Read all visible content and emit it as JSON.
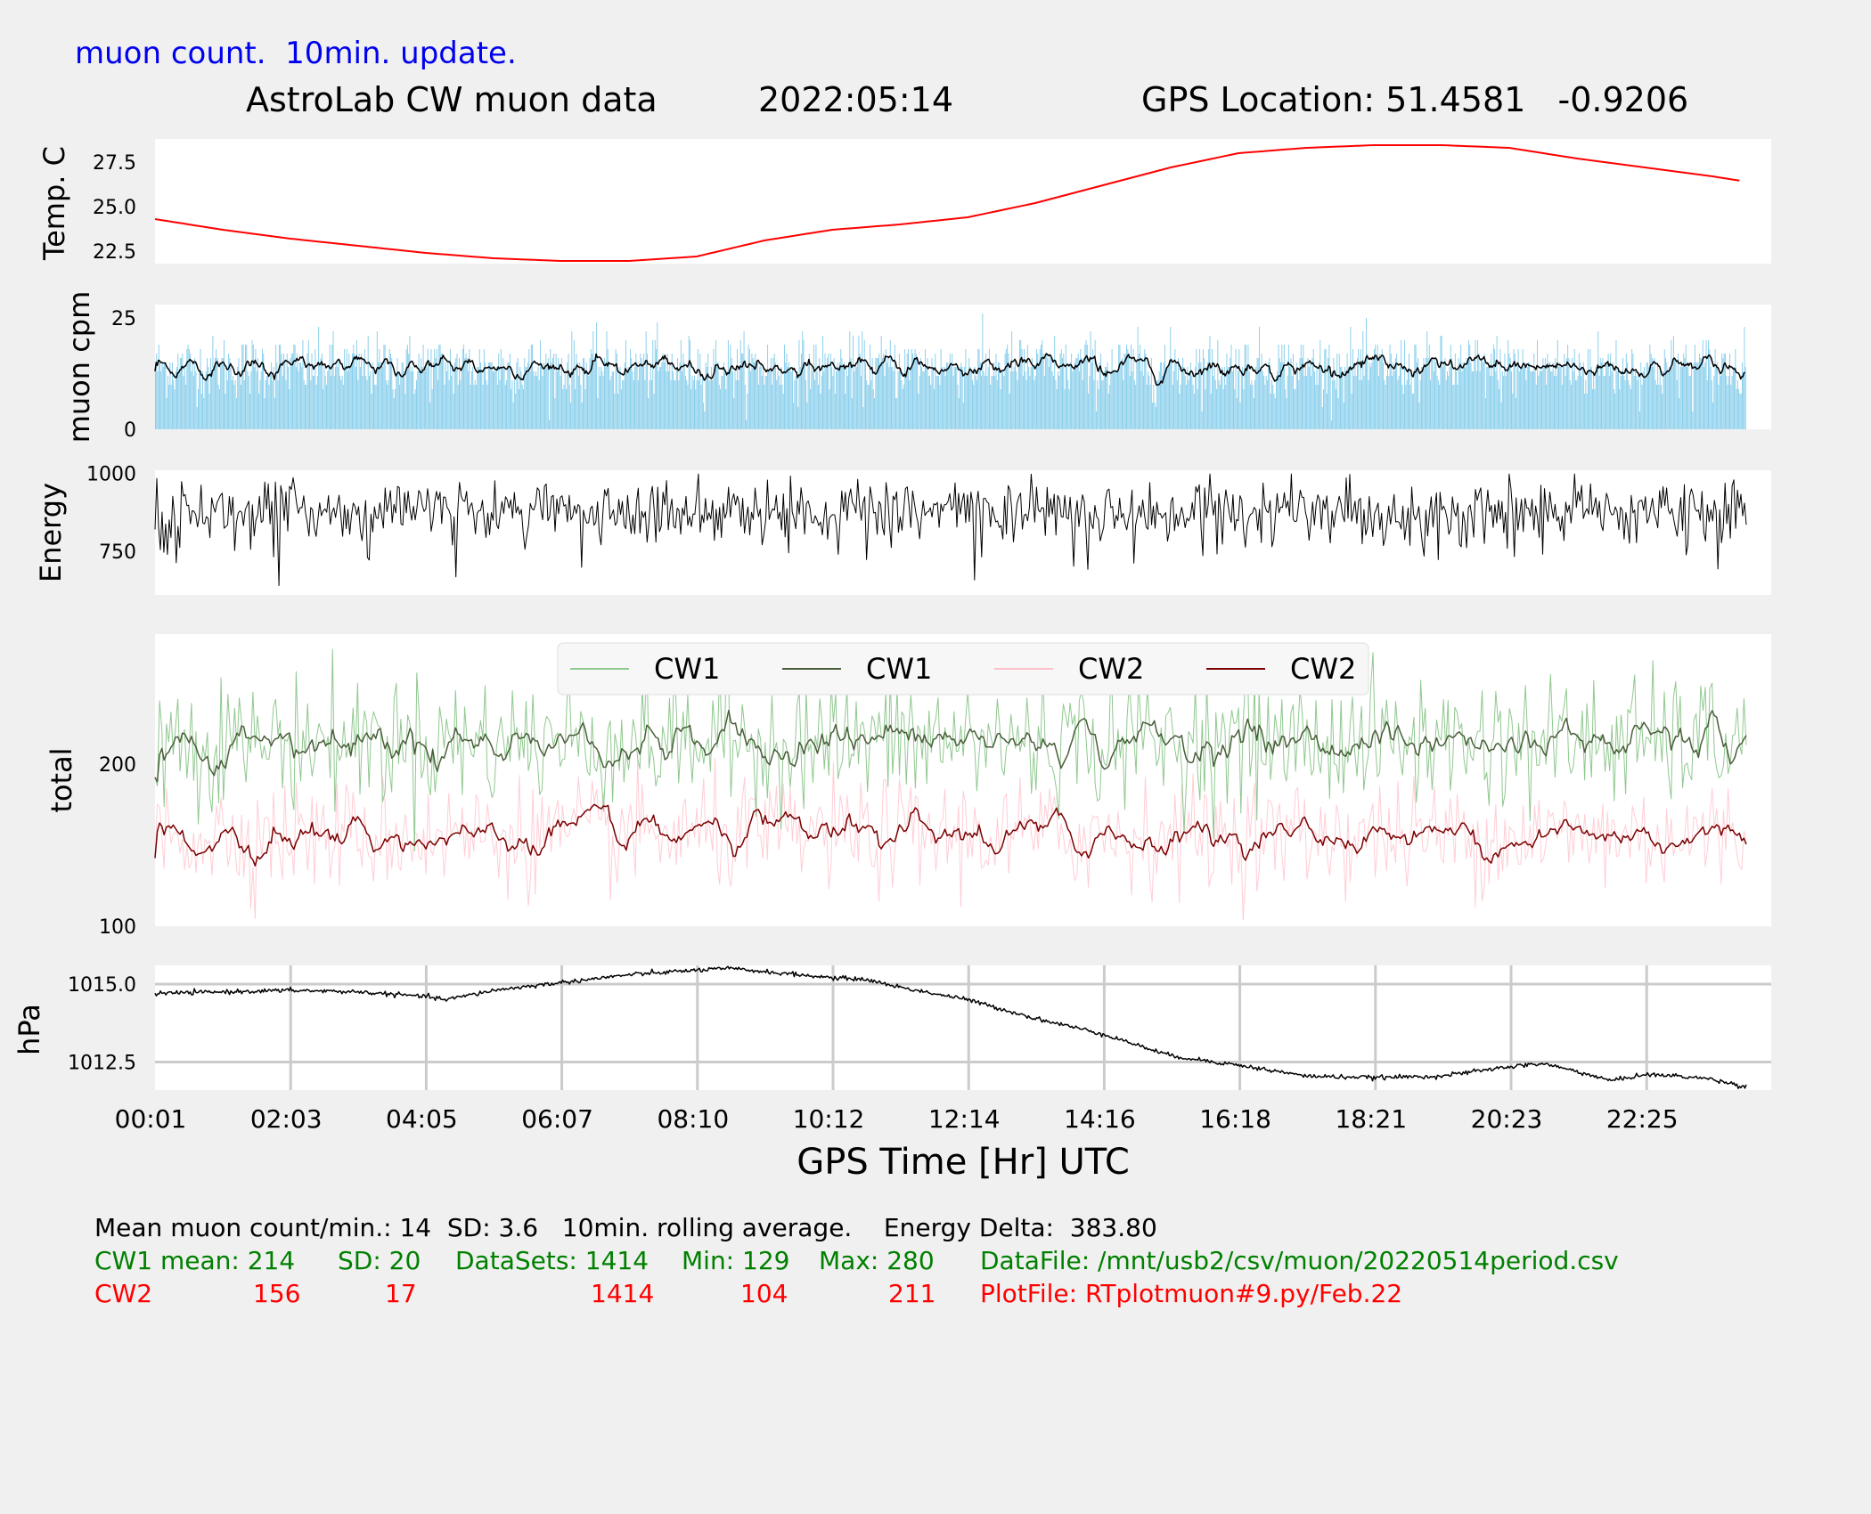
{
  "header": {
    "update_note": "muon count.  10min. update.",
    "title": "AstroLab CW muon data",
    "date": "2022:05:14",
    "gps": "GPS Location: 51.4581   -0.9206"
  },
  "chart_data": [
    {
      "type": "line",
      "id": "temperature",
      "ylabel": "Temp. C",
      "ylim": [
        21.8,
        28.8
      ],
      "yticks": [
        "27.5",
        "25.0",
        "22.5"
      ],
      "series": [
        {
          "color": "#ff0000",
          "x": [
            0.0,
            1.0,
            2.0,
            3.0,
            4.0,
            5.0,
            6.0,
            7.0,
            8.0,
            9.0,
            10.0,
            11.0,
            12.0,
            13.0,
            14.0,
            15.0,
            16.0,
            17.0,
            18.0,
            19.0,
            20.0,
            21.0,
            22.0,
            23.0,
            23.5
          ],
          "values": [
            24.3,
            23.7,
            23.2,
            22.8,
            22.4,
            22.1,
            21.95,
            21.95,
            22.2,
            23.1,
            23.7,
            24.0,
            24.4,
            25.2,
            26.2,
            27.2,
            28.0,
            28.3,
            28.45,
            28.45,
            28.3,
            27.7,
            27.2,
            26.7,
            26.4
          ]
        }
      ],
      "grid": false
    },
    {
      "type": "bar",
      "id": "muon_cpm",
      "ylabel": "muon cpm",
      "ylim": [
        0,
        28
      ],
      "yticks": [
        "25",
        "0"
      ],
      "note": "per-minute muon counts (light blue bars, ~1414 samples, mean 14, SD 3.6) with 10min rolling average (black line)",
      "series": [
        {
          "name": "",
          "color": "#87ceeb",
          "mean": 14,
          "sd": 3.6,
          "samples": 1414
        },
        {
          "name": "",
          "color": "#000000",
          "rolling_window_min": 10
        }
      ]
    },
    {
      "type": "line",
      "id": "energy",
      "ylabel": "Energy",
      "ylim": [
        610,
        1010
      ],
      "yticks": [
        "1000",
        "750"
      ],
      "note": "noisy energy trace, approx range 620-1000",
      "series": [
        {
          "color": "#000000",
          "approx_mean": 880
        }
      ]
    },
    {
      "type": "line",
      "id": "total",
      "ylabel": "total",
      "ylim": [
        100,
        280
      ],
      "yticks": [
        "200",
        "100"
      ],
      "legend": [
        "CW1",
        "CW1",
        "CW2",
        "CW2"
      ],
      "legend_position": "top-center",
      "series": [
        {
          "name": "CW1",
          "color": "#90c890",
          "mean": 214,
          "sd": 20,
          "min": 129,
          "max": 280
        },
        {
          "name": "CW1",
          "color": "#4a5e3a",
          "mean": 214,
          "rolling": true
        },
        {
          "name": "CW2",
          "color": "#ffc0cb",
          "mean": 156,
          "sd": 17,
          "min": 104,
          "max": 211
        },
        {
          "name": "CW2",
          "color": "#7a0000",
          "mean": 156,
          "rolling": true
        }
      ]
    },
    {
      "type": "line",
      "id": "pressure",
      "ylabel": "hPa",
      "ylim": [
        1011.6,
        1015.6
      ],
      "yticks": [
        "1015.0",
        "1012.5"
      ],
      "grid": true,
      "series": [
        {
          "color": "#000000",
          "x": [
            0.0,
            1.0,
            2.0,
            3.0,
            4.0,
            4.3,
            5.0,
            6.0,
            7.0,
            8.0,
            8.5,
            9.0,
            10.0,
            10.5,
            11.0,
            12.0,
            13.0,
            14.0,
            15.0,
            16.0,
            17.0,
            18.0,
            19.0,
            20.0,
            20.5,
            21.0,
            21.5,
            22.0,
            22.5,
            23.0,
            23.5
          ],
          "values": [
            1014.7,
            1014.75,
            1014.8,
            1014.75,
            1014.6,
            1014.5,
            1014.8,
            1015.05,
            1015.3,
            1015.45,
            1015.5,
            1015.4,
            1015.2,
            1015.15,
            1014.9,
            1014.5,
            1013.9,
            1013.4,
            1012.7,
            1012.4,
            1012.05,
            1012.0,
            1012.05,
            1012.35,
            1012.45,
            1012.2,
            1011.9,
            1012.1,
            1012.05,
            1011.95,
            1011.7
          ]
        }
      ]
    }
  ],
  "x_axis": {
    "label": "GPS Time  [Hr] UTC",
    "ticks": [
      "00:01",
      "02:03",
      "04:05",
      "06:07",
      "08:10",
      "10:12",
      "12:14",
      "14:16",
      "16:18",
      "18:21",
      "20:23",
      "22:25"
    ]
  },
  "stats": {
    "line1": "Mean muon count/min.: 14  SD: 3.6   10min. rolling average.    Energy Delta:  383.80",
    "cw1": {
      "label": "CW1 mean: 214",
      "sd": "SD: 20",
      "datasets": "DataSets: 1414",
      "min": "Min: 129",
      "max": "Max: 280",
      "file": "DataFile: /mnt/usb2/csv/muon/20220514period.csv"
    },
    "cw2": {
      "label": "CW2",
      "mean": "156",
      "sd": "17",
      "datasets": "1414",
      "min": "104",
      "max": "211",
      "file": "PlotFile: RTplotmuon#9.py/Feb.22"
    }
  }
}
